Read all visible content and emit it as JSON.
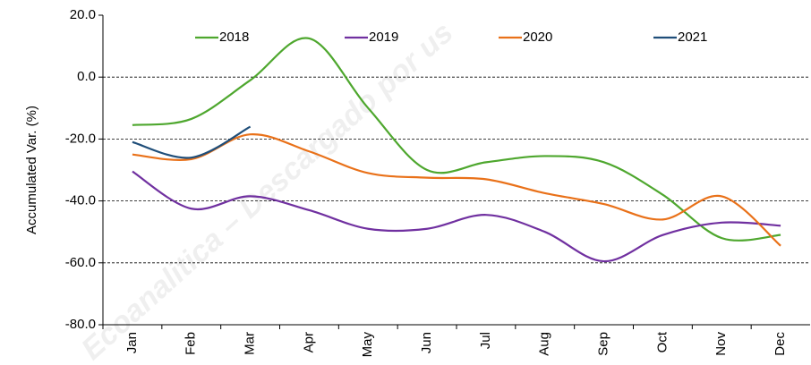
{
  "chart_data": {
    "type": "line",
    "y_label": "Accumulated Var. (%)",
    "watermark": "Ecoanalitica – Descargado por us",
    "categories": [
      "Jan",
      "Feb",
      "Mar",
      "Apr",
      "May",
      "Jun",
      "Jul",
      "Aug",
      "Sep",
      "Oct",
      "Nov",
      "Dec"
    ],
    "series": [
      {
        "name": "2018",
        "color": "#4ea72e",
        "values": [
          -15.5,
          -13.5,
          -1,
          12.5,
          -10,
          -30,
          -27.5,
          -25.5,
          -27.5,
          -38,
          -52,
          -51
        ]
      },
      {
        "name": "2019",
        "color": "#7030a0",
        "values": [
          -30.5,
          -42.5,
          -38.5,
          -43,
          -49,
          -49,
          -44.5,
          -50,
          -59.5,
          -51,
          -47,
          -48
        ]
      },
      {
        "name": "2020",
        "color": "#e97119",
        "values": [
          -25,
          -26.5,
          -18.5,
          -24,
          -31,
          -32.5,
          -33,
          -37.5,
          -41,
          -46,
          -38.5,
          -54.5
        ]
      },
      {
        "name": "2021",
        "color": "#1f4e79",
        "values": [
          -21,
          -26,
          -16,
          null,
          null,
          null,
          null,
          null,
          null,
          null,
          null,
          null
        ]
      }
    ],
    "ylim": [
      -80,
      20
    ],
    "yticks": [
      {
        "value": 20,
        "label": "20.0"
      },
      {
        "value": 0,
        "label": "0.0"
      },
      {
        "value": -20,
        "label": "-20.0"
      },
      {
        "value": -40,
        "label": "-40.0"
      },
      {
        "value": -60,
        "label": "-60.0"
      },
      {
        "value": -80,
        "label": "-80.0"
      }
    ],
    "grid": true,
    "smooth": true,
    "legend": "top"
  }
}
